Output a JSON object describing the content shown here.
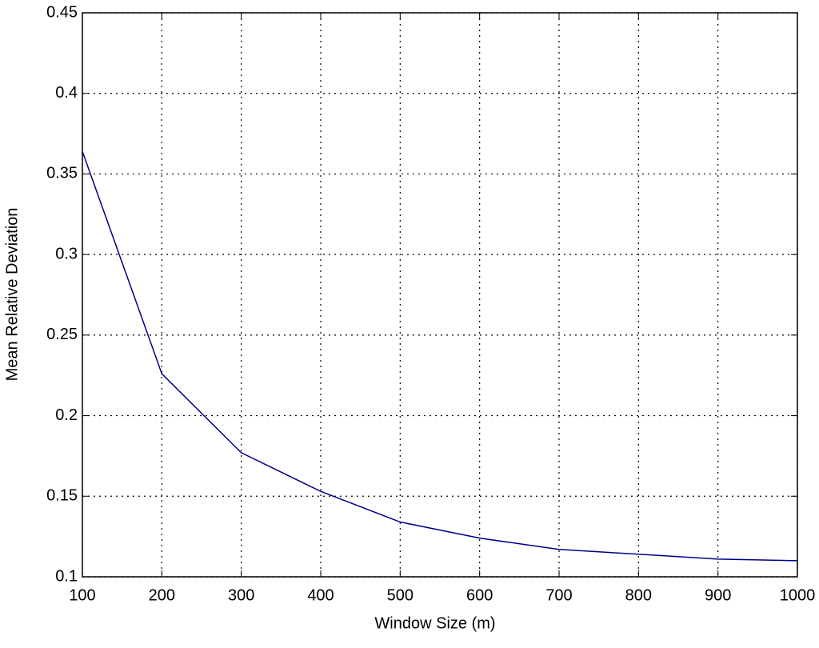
{
  "chart_data": {
    "type": "line",
    "x_label": "Window Size (m)",
    "y_label": "Mean Relative Deviation",
    "x": [
      100,
      200,
      300,
      400,
      500,
      600,
      700,
      800,
      900,
      1000
    ],
    "series": [
      {
        "color": "#00008b",
        "values": [
          0.364,
          0.226,
          0.177,
          0.153,
          0.134,
          0.124,
          0.117,
          0.114,
          0.111,
          0.11
        ]
      }
    ],
    "xlim": [
      100,
      1000
    ],
    "xticks": [
      100,
      200,
      300,
      400,
      500,
      600,
      700,
      800,
      900,
      1000
    ],
    "ylim": [
      0.1,
      0.45
    ],
    "yticks": [
      0.1,
      0.15,
      0.2,
      0.25,
      0.3,
      0.35,
      0.4,
      0.45
    ],
    "grid": true
  }
}
